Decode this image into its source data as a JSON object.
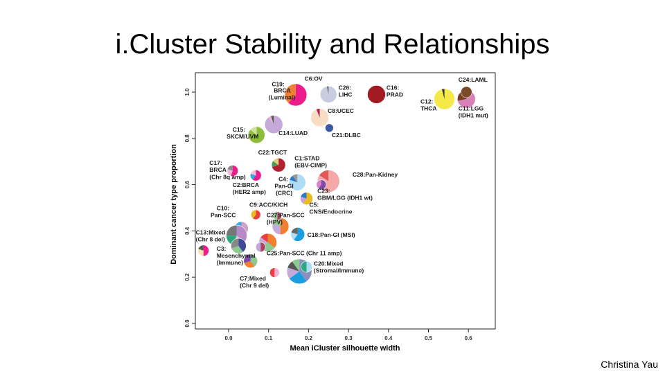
{
  "slide": {
    "title": "i.Cluster Stability and Relationships",
    "footer": "Christina Yau"
  },
  "colors": {
    "axis": "#222222",
    "text": "#1a1a1a"
  },
  "chart_data": {
    "type": "scatter",
    "title": "",
    "xlabel": "Mean iCluster silhouette width",
    "ylabel": "Dominant cancer type proportion",
    "xlim": [
      -0.1,
      0.66
    ],
    "ylim": [
      0,
      1.1
    ],
    "xticks": [
      "0.0",
      "0.1",
      "0.2",
      "0.3",
      "0.4",
      "0.5",
      "0.6"
    ],
    "yticks": [
      "0.0",
      "0.2",
      "0.4",
      "0.6",
      "0.8",
      "1.0"
    ],
    "points": [
      {
        "x": 0.168,
        "y": 0.988,
        "r": 16,
        "slices": [
          [
            "#ec1c8c",
            0.62
          ],
          [
            "#f08030",
            0.38
          ]
        ]
      },
      {
        "x": 0.25,
        "y": 0.99,
        "r": 12,
        "slices": [
          [
            "#c8cce0",
            0.97
          ],
          [
            "#555555",
            0.03
          ]
        ]
      },
      {
        "x": 0.37,
        "y": 0.99,
        "r": 13,
        "slices": [
          [
            "#a31b22",
            1
          ]
        ]
      },
      {
        "x": 0.54,
        "y": 0.97,
        "r": 15,
        "slices": [
          [
            "#f5e94a",
            0.96
          ],
          [
            "#333333",
            0.04
          ]
        ]
      },
      {
        "x": 0.595,
        "y": 0.97,
        "r": 13,
        "slices": [
          [
            "#d880b8",
            0.72
          ],
          [
            "#7a3e22",
            0.28
          ]
        ]
      },
      {
        "x": 0.595,
        "y": 1.0,
        "r": 8,
        "slices": [
          [
            "#7a4a2a",
            1
          ]
        ]
      },
      {
        "x": 0.228,
        "y": 0.89,
        "r": 13,
        "slices": [
          [
            "#f8dcc4",
            0.94
          ],
          [
            "#aa2255",
            0.06
          ]
        ]
      },
      {
        "x": 0.252,
        "y": 0.845,
        "r": 6,
        "slices": [
          [
            "#3c5aa0",
            1
          ]
        ]
      },
      {
        "x": 0.113,
        "y": 0.86,
        "r": 13,
        "slices": [
          [
            "#c4aad8",
            0.9
          ],
          [
            "#f0b0c8",
            0.05
          ],
          [
            "#555555",
            0.05
          ]
        ]
      },
      {
        "x": 0.07,
        "y": 0.815,
        "r": 12,
        "slices": [
          [
            "#8cbe3c",
            0.86
          ],
          [
            "#d0e0a0",
            0.14
          ]
        ]
      },
      {
        "x": 0.125,
        "y": 0.685,
        "r": 10,
        "slices": [
          [
            "#b32030",
            0.7
          ],
          [
            "#4a9a5a",
            0.15
          ],
          [
            "#e0d080",
            0.15
          ]
        ]
      },
      {
        "x": 0.01,
        "y": 0.66,
        "r": 8,
        "slices": [
          [
            "#ec1c8c",
            0.55
          ],
          [
            "#f4b4d8",
            0.25
          ],
          [
            "#888888",
            0.2
          ]
        ]
      },
      {
        "x": 0.068,
        "y": 0.64,
        "r": 8,
        "slices": [
          [
            "#ec1c8c",
            0.6
          ],
          [
            "#34a8e0",
            0.2
          ],
          [
            "#f4c4d4",
            0.2
          ]
        ]
      },
      {
        "x": 0.172,
        "y": 0.61,
        "r": 12,
        "slices": [
          [
            "#aedcf4",
            0.8
          ],
          [
            "#2c7ac4",
            0.1
          ],
          [
            "#999999",
            0.1
          ]
        ]
      },
      {
        "x": 0.25,
        "y": 0.615,
        "r": 16,
        "slices": [
          [
            "#f4a8a8",
            0.84
          ],
          [
            "#e05858",
            0.16
          ]
        ]
      },
      {
        "x": 0.232,
        "y": 0.6,
        "r": 7,
        "slices": [
          [
            "#7c4aa8",
            0.6
          ],
          [
            "#d880c8",
            0.4
          ]
        ]
      },
      {
        "x": 0.195,
        "y": 0.54,
        "r": 9,
        "slices": [
          [
            "#e8bc20",
            0.6
          ],
          [
            "#c8a0d8",
            0.2
          ],
          [
            "#2c7ac4",
            0.2
          ]
        ]
      },
      {
        "x": 0.032,
        "y": 0.41,
        "r": 10,
        "slices": [
          [
            "#d0a0c8",
            0.4
          ],
          [
            "#8cc890",
            0.3
          ],
          [
            "#34a8e0",
            0.3
          ]
        ]
      },
      {
        "x": 0.068,
        "y": 0.47,
        "r": 7,
        "slices": [
          [
            "#e84040",
            0.6
          ],
          [
            "#e8bc20",
            0.4
          ]
        ]
      },
      {
        "x": 0.13,
        "y": 0.42,
        "r": 12,
        "slices": [
          [
            "#f08030",
            0.5
          ],
          [
            "#c4aad8",
            0.3
          ],
          [
            "#8cc890",
            0.2
          ]
        ]
      },
      {
        "x": 0.122,
        "y": 0.465,
        "r": 6,
        "slices": [
          [
            "#aa4466",
            0.5
          ],
          [
            "#8cc890",
            0.5
          ]
        ]
      },
      {
        "x": 0.173,
        "y": 0.385,
        "r": 10,
        "slices": [
          [
            "#1a9ee0",
            0.6
          ],
          [
            "#aedcf4",
            0.2
          ],
          [
            "#666666",
            0.2
          ]
        ]
      },
      {
        "x": 0.02,
        "y": 0.38,
        "r": 15,
        "slices": [
          [
            "#b888c8",
            0.35
          ],
          [
            "#f4b4d8",
            0.2
          ],
          [
            "#2ca880",
            0.2
          ],
          [
            "#777777",
            0.25
          ]
        ]
      },
      {
        "x": 0.025,
        "y": 0.335,
        "r": 11,
        "slices": [
          [
            "#3c4a98",
            0.4
          ],
          [
            "#8cc890",
            0.3
          ],
          [
            "#888888",
            0.3
          ]
        ]
      },
      {
        "x": -0.063,
        "y": 0.315,
        "r": 8,
        "slices": [
          [
            "#ec1c8c",
            0.5
          ],
          [
            "#f8e0b0",
            0.3
          ],
          [
            "#555555",
            0.2
          ]
        ]
      },
      {
        "x": 0.098,
        "y": 0.35,
        "r": 13,
        "slices": [
          [
            "#f08030",
            0.35
          ],
          [
            "#8cc890",
            0.3
          ],
          [
            "#c4aad8",
            0.2
          ],
          [
            "#e84040",
            0.15
          ]
        ]
      },
      {
        "x": 0.08,
        "y": 0.33,
        "r": 7,
        "slices": [
          [
            "#aa4466",
            0.5
          ],
          [
            "#c4aad8",
            0.5
          ]
        ]
      },
      {
        "x": 0.055,
        "y": 0.27,
        "r": 10,
        "slices": [
          [
            "#8cc890",
            0.4
          ],
          [
            "#f08030",
            0.3
          ],
          [
            "#7c4aa8",
            0.3
          ]
        ]
      },
      {
        "x": 0.177,
        "y": 0.225,
        "r": 18,
        "slices": [
          [
            "#8890c0",
            0.4
          ],
          [
            "#1a9ee0",
            0.25
          ],
          [
            "#c4aad8",
            0.15
          ],
          [
            "#555555",
            0.1
          ],
          [
            "#8cc890",
            0.1
          ]
        ]
      },
      {
        "x": 0.195,
        "y": 0.245,
        "r": 8,
        "slices": [
          [
            "#aedcf4",
            0.5
          ],
          [
            "#2ca880",
            0.5
          ]
        ]
      },
      {
        "x": 0.115,
        "y": 0.22,
        "r": 7,
        "slices": [
          [
            "#f4b4d8",
            0.5
          ],
          [
            "#e84040",
            0.5
          ]
        ]
      }
    ],
    "labels": [
      {
        "text": "C19:",
        "x": 0.108,
        "y": 1.025
      },
      {
        "text": "BRCA",
        "x": 0.113,
        "y": 0.998
      },
      {
        "text": "(Luminal)",
        "x": 0.1,
        "y": 0.968
      },
      {
        "text": "C6:OV",
        "x": 0.19,
        "y": 1.05
      },
      {
        "text": "C26:",
        "x": 0.275,
        "y": 1.01
      },
      {
        "text": "LIHC",
        "x": 0.275,
        "y": 0.98
      },
      {
        "text": "C16:",
        "x": 0.395,
        "y": 1.01
      },
      {
        "text": "PRAD",
        "x": 0.395,
        "y": 0.98
      },
      {
        "text": "C24:LAML",
        "x": 0.575,
        "y": 1.045
      },
      {
        "text": "C12:",
        "x": 0.48,
        "y": 0.95
      },
      {
        "text": "THCA",
        "x": 0.48,
        "y": 0.92
      },
      {
        "text": "C11:LGG",
        "x": 0.575,
        "y": 0.92
      },
      {
        "text": "(IDH1 mut)",
        "x": 0.575,
        "y": 0.89
      },
      {
        "text": "C8:UCEC",
        "x": 0.248,
        "y": 0.91
      },
      {
        "text": "C21:DLBC",
        "x": 0.258,
        "y": 0.805
      },
      {
        "text": "C15:",
        "x": 0.01,
        "y": 0.83
      },
      {
        "text": "SKCM/UVM",
        "x": -0.005,
        "y": 0.8
      },
      {
        "text": "C14:LUAD",
        "x": 0.125,
        "y": 0.815
      },
      {
        "text": "C22:TGCT",
        "x": 0.074,
        "y": 0.73
      },
      {
        "text": "C1:STAD",
        "x": 0.165,
        "y": 0.705
      },
      {
        "text": "(EBV-CIMP)",
        "x": 0.165,
        "y": 0.675
      },
      {
        "text": "C17:",
        "x": -0.048,
        "y": 0.685
      },
      {
        "text": "BRCA",
        "x": -0.048,
        "y": 0.655
      },
      {
        "text": "(Chr 8q amp)",
        "x": -0.048,
        "y": 0.625
      },
      {
        "text": "C28:Pan-Kidney",
        "x": 0.31,
        "y": 0.635
      },
      {
        "text": "C4:",
        "x": 0.125,
        "y": 0.615
      },
      {
        "text": "Pan-GI",
        "x": 0.115,
        "y": 0.585
      },
      {
        "text": "(CRC)",
        "x": 0.118,
        "y": 0.555
      },
      {
        "text": "C2:BRCA",
        "x": 0.01,
        "y": 0.59
      },
      {
        "text": "(HER2 amp)",
        "x": 0.01,
        "y": 0.56
      },
      {
        "text": "C23:",
        "x": 0.222,
        "y": 0.565
      },
      {
        "text": "GBM/LGG (IDH1 wt)",
        "x": 0.222,
        "y": 0.535
      },
      {
        "text": "C9:ACC/KICH",
        "x": 0.052,
        "y": 0.505
      },
      {
        "text": "C5:",
        "x": 0.202,
        "y": 0.505
      },
      {
        "text": "CNS/Endocrine",
        "x": 0.202,
        "y": 0.475
      },
      {
        "text": "C10:",
        "x": -0.03,
        "y": 0.49
      },
      {
        "text": "Pan-SCC",
        "x": -0.045,
        "y": 0.46
      },
      {
        "text": "C27:Pan-SCC",
        "x": 0.095,
        "y": 0.46
      },
      {
        "text": "(HPV)",
        "x": 0.095,
        "y": 0.43
      },
      {
        "text": "C18:Pan-GI (MSI)",
        "x": 0.197,
        "y": 0.375
      },
      {
        "text": "C13:Mixed",
        "x": -0.082,
        "y": 0.385
      },
      {
        "text": "(Chr 8 del)",
        "x": -0.082,
        "y": 0.355
      },
      {
        "text": "C3:",
        "x": -0.03,
        "y": 0.315
      },
      {
        "text": "Mesenchymal",
        "x": -0.03,
        "y": 0.285
      },
      {
        "text": "(Immune)",
        "x": -0.03,
        "y": 0.255
      },
      {
        "text": "C25:Pan-SCC (Chr 11 amp)",
        "x": 0.095,
        "y": 0.295
      },
      {
        "text": "C20:Mixed",
        "x": 0.213,
        "y": 0.25
      },
      {
        "text": "(Stromal/Immune)",
        "x": 0.213,
        "y": 0.22
      },
      {
        "text": "C7:Mixed",
        "x": 0.028,
        "y": 0.185
      },
      {
        "text": "(Chr 9 del)",
        "x": 0.028,
        "y": 0.155
      }
    ]
  }
}
